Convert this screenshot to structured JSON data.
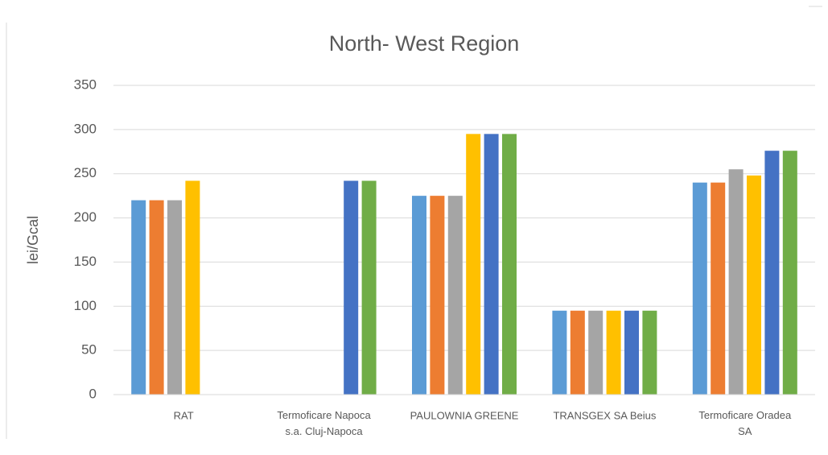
{
  "chart_data": {
    "type": "bar",
    "title": "North- West Region",
    "y_label": "lei/Gcal",
    "categories": [
      "RAT",
      "Termoficare Napoca s.a. Cluj-Napoca",
      "PAULOWNIA GREENE",
      "TRANSGEX SA Beius",
      "Termoficare Oradea SA"
    ],
    "series": [
      {
        "color": "#5b9bd5",
        "values": [
          220,
          null,
          225,
          95,
          240
        ]
      },
      {
        "color": "#ed7d31",
        "values": [
          220,
          null,
          225,
          95,
          240
        ]
      },
      {
        "color": "#a5a5a5",
        "values": [
          220,
          null,
          225,
          95,
          255
        ]
      },
      {
        "color": "#ffc000",
        "values": [
          242,
          null,
          295,
          95,
          248
        ]
      },
      {
        "color": "#4472c4",
        "values": [
          null,
          242,
          295,
          95,
          276
        ]
      },
      {
        "color": "#70ad47",
        "values": [
          null,
          242,
          295,
          95,
          276
        ]
      }
    ],
    "ylim": [
      0,
      350
    ],
    "yticks": [
      0,
      50,
      100,
      150,
      200,
      250,
      300,
      350
    ],
    "grid": true,
    "legend": false
  }
}
